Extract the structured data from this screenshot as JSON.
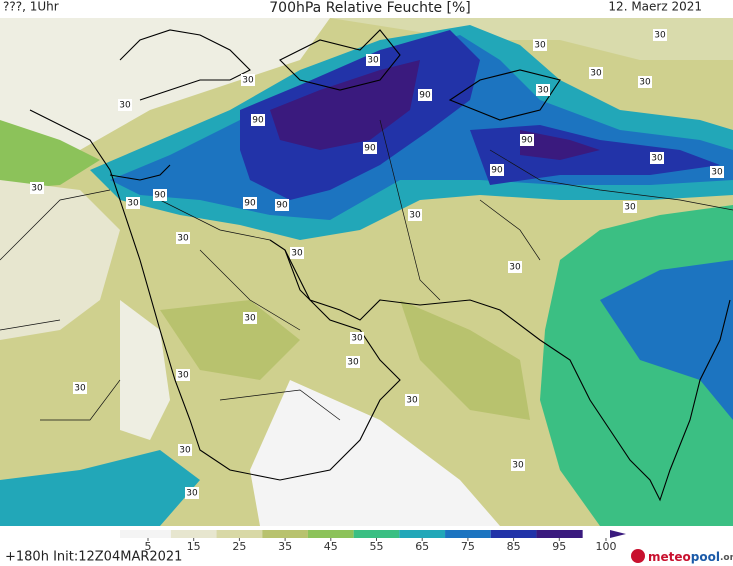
{
  "header": {
    "left": "???, 1Uhr",
    "title": "700hPa Relative Feuchte [%]",
    "date": "12. Maerz 2021"
  },
  "contour_labels": [
    "90",
    "90",
    "90",
    "90",
    "90",
    "90",
    "90",
    "90",
    "30",
    "30",
    "30",
    "30",
    "30",
    "30",
    "30",
    "30",
    "30",
    "30",
    "30",
    "30",
    "30",
    "30",
    "30",
    "30",
    "30",
    "30",
    "30",
    "30",
    "30",
    "30",
    "30",
    "30",
    "30",
    "30"
  ],
  "colorbar": {
    "ticks": [
      5,
      15,
      25,
      35,
      45,
      55,
      65,
      75,
      85,
      95,
      100
    ],
    "colors": [
      "#f4f4f4",
      "#e7e6cf",
      "#d8d8a6",
      "#b8c26e",
      "#8cc25a",
      "#3bbf83",
      "#22a7b8",
      "#1c74c0",
      "#2233a8",
      "#3a1a7e"
    ]
  },
  "footer": {
    "run": "+180h Init:12Z04MAR2021",
    "logo": [
      "meteo",
      "pool",
      ".org"
    ]
  }
}
